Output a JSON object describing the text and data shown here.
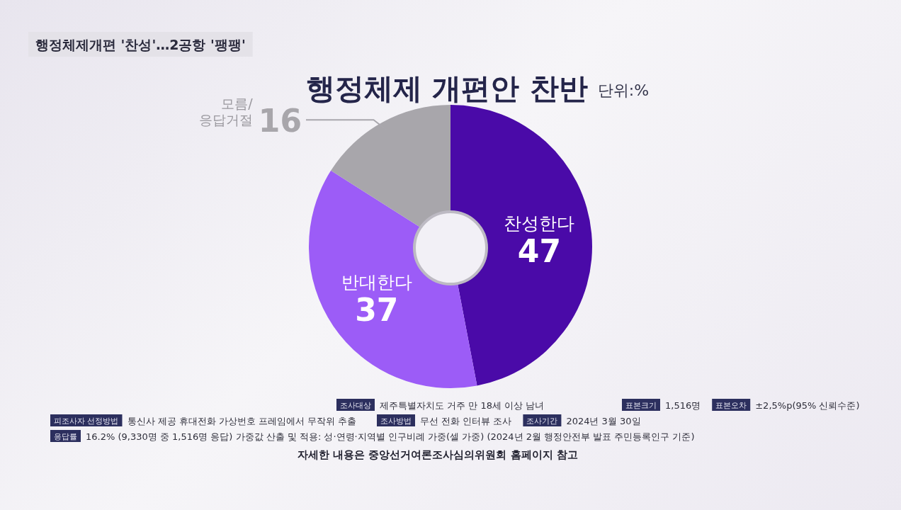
{
  "chart_data": {
    "type": "donut",
    "title": "행정체제 개편안 찬반",
    "subtitle": "단위:%",
    "categories": [
      "찬성한다",
      "반대한다",
      "모름/응답거절"
    ],
    "values": [
      47,
      37,
      16
    ],
    "colors": [
      "#4a0aa8",
      "#9c5cf7",
      "#a8a6ab"
    ],
    "data_labels": true,
    "annotations": [
      "행정체제개편 '찬성'…2공항 '팽팽'",
      "조사대상",
      "제주특별자치도 거주 만 18세 이상 남녀",
      "표본크기",
      "1,516명",
      "표본오차",
      "±2,5%p(95% 신뢰수준)",
      "피조사자 선정방법",
      "통신사 제공 휴대전화 가상번호 프레임에서 무작위 추출",
      "조사방법",
      "무선 전화 인터뷰 조사",
      "조사기간",
      "2024년 3월 30일",
      "응답률",
      "16.2% (9,330명 중 1,516명 응답) 가중값 산출 및 적용: 성·연령·지역별 인구비례 가중(셀 가중)  (2024년 2월 행정안전부 발표 주민등록인구 기준)",
      "자세한 내용은 중앙선거여론조사심의위원회 홈페이지 참고"
    ]
  }
}
